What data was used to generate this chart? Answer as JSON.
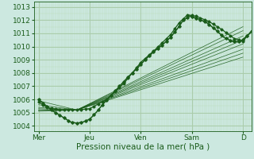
{
  "bg_color": "#cce8e0",
  "grid_major_color": "#aaccaa",
  "grid_minor_color": "#bbddbb",
  "line_color": "#1a5c1a",
  "xlabel": "Pression niveau de la mer( hPa )",
  "xtick_labels": [
    "Mer",
    "Jeu",
    "Ven",
    "Sam",
    "D"
  ],
  "xtick_positions": [
    0,
    24,
    48,
    72,
    96
  ],
  "ytick_values": [
    1004,
    1005,
    1006,
    1007,
    1008,
    1009,
    1010,
    1011,
    1012,
    1013
  ],
  "ylim": [
    1003.6,
    1013.4
  ],
  "xlim": [
    -2,
    100
  ]
}
